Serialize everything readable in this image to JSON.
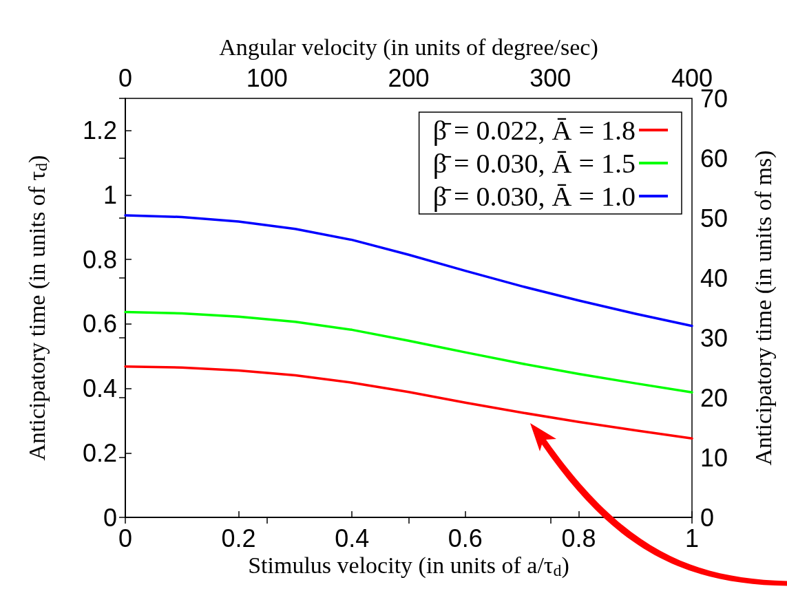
{
  "chart_data": {
    "type": "line",
    "xlabel": "Stimulus velocity (in units of a/τ$_{d}$)",
    "ylabel": "Anticipatory time (in units of τ$_{d}$)",
    "y2label": "Anticipatory time (in units of ms)",
    "x2label": "Angular velocity (in units of degree/sec)",
    "x": [
      0,
      0.1,
      0.2,
      0.3,
      0.4,
      0.5,
      0.6,
      0.7,
      0.8,
      0.9,
      1
    ],
    "series": [
      {
        "name": "β̄ = 0.022, Ā = 1.8",
        "color": "#ff0000",
        "values": [
          0.468,
          0.465,
          0.456,
          0.441,
          0.418,
          0.389,
          0.356,
          0.325,
          0.296,
          0.27,
          0.245
        ]
      },
      {
        "name": "β̄ = 0.030, Ā = 1.5",
        "color": "#00ff00",
        "values": [
          0.637,
          0.633,
          0.623,
          0.607,
          0.582,
          0.548,
          0.512,
          0.477,
          0.445,
          0.416,
          0.388
        ]
      },
      {
        "name": "β̄ = 0.030, Ā = 1.0",
        "color": "#0000ff",
        "values": [
          0.937,
          0.932,
          0.918,
          0.895,
          0.861,
          0.815,
          0.765,
          0.717,
          0.673,
          0.632,
          0.594
        ]
      }
    ],
    "xlim": [
      0,
      1
    ],
    "xticks": [
      0,
      0.2,
      0.4,
      0.6,
      0.8,
      1
    ],
    "ylim": [
      0,
      1.3
    ],
    "yticks": [
      0,
      0.2,
      0.4,
      0.6,
      0.8,
      1,
      1.2
    ],
    "y2lim": [
      0,
      70
    ],
    "y2ticks": [
      0,
      10,
      20,
      30,
      40,
      50,
      60,
      70
    ],
    "x2lim": [
      0,
      400
    ],
    "x2ticks": [
      0,
      100,
      200,
      300,
      400
    ],
    "grid": false,
    "legend": "top right",
    "marker": "none",
    "line_style": "solid"
  }
}
